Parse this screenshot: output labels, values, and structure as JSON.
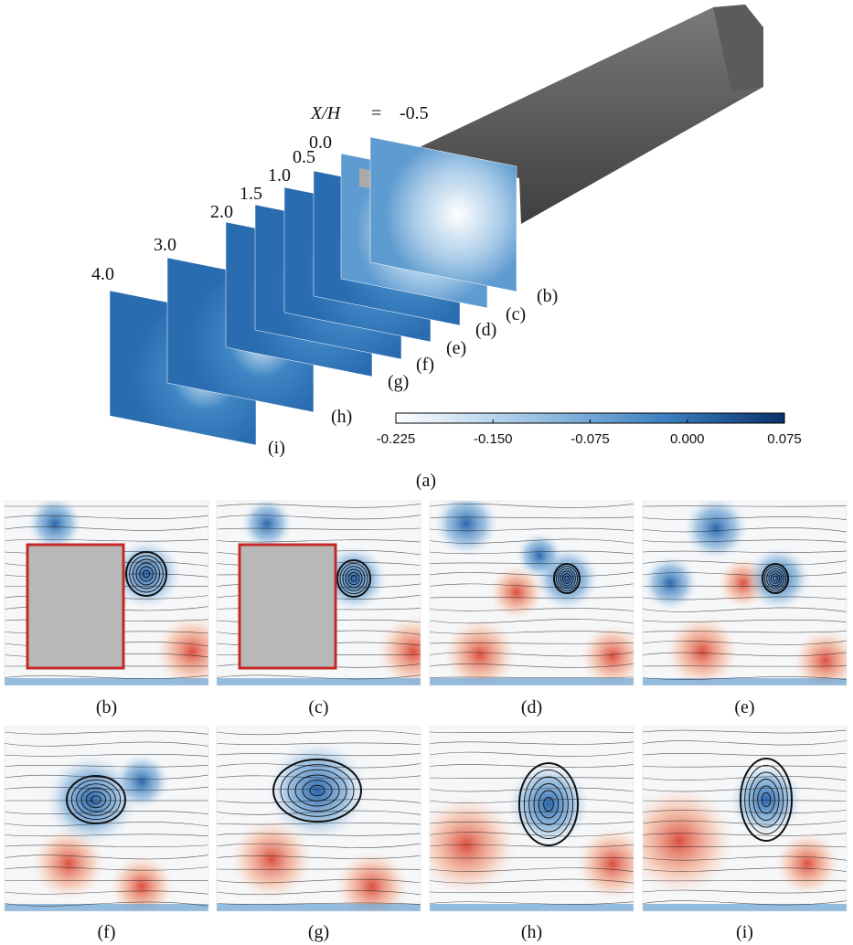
{
  "figure": {
    "top": {
      "axis_label": "X/H",
      "equals": "=",
      "stations": [
        {
          "value": "-0.5",
          "panel": "(b)"
        },
        {
          "value": "0.0",
          "panel": "(c)"
        },
        {
          "value": "0.5",
          "panel": "(d)"
        },
        {
          "value": "1.0",
          "panel": "(e)"
        },
        {
          "value": "1.5",
          "panel": "(f)"
        },
        {
          "value": "2.0",
          "panel": "(g)"
        },
        {
          "value": "3.0",
          "panel": "(h)"
        },
        {
          "value": "4.0",
          "panel": "(i)"
        }
      ],
      "colorbar_ticks": [
        "-0.225",
        "-0.150",
        "-0.075",
        "0.000",
        "0.075"
      ],
      "caption": "(a)"
    },
    "panels": [
      {
        "caption": "(b)"
      },
      {
        "caption": "(c)"
      },
      {
        "caption": "(d)"
      },
      {
        "caption": "(e)"
      },
      {
        "caption": "(f)"
      },
      {
        "caption": "(g)"
      },
      {
        "caption": "(h)"
      },
      {
        "caption": "(i)"
      }
    ]
  }
}
